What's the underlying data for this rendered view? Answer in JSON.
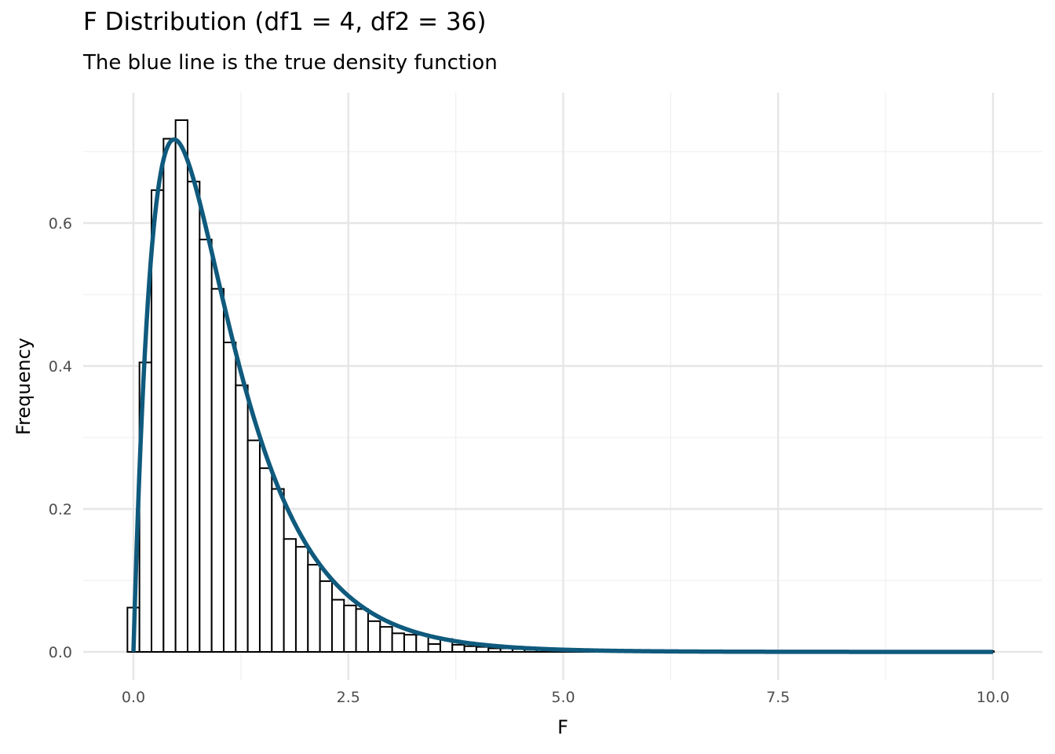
{
  "title": "F Distribution (df1 = 4, df2 = 36)",
  "subtitle": "The blue line is the true density function",
  "chart_data": {
    "type": "bar",
    "title": "F Distribution (df1 = 4, df2 = 36)",
    "subtitle": "The blue line is the true density function",
    "xlabel": "F",
    "ylabel": "Frequency",
    "xlim": [
      -0.03,
      10.03
    ],
    "ylim": [
      0,
      0.745
    ],
    "x_ticks": [
      0.0,
      2.5,
      5.0,
      7.5,
      10.0
    ],
    "x_tick_labels": [
      "0.0",
      "2.5",
      "5.0",
      "7.5",
      "10.0"
    ],
    "y_ticks": [
      0.0,
      0.2,
      0.4,
      0.6
    ],
    "y_tick_labels": [
      "0.0",
      "0.2",
      "0.4",
      "0.6"
    ],
    "grid": true,
    "histogram": {
      "binwidth": 0.14,
      "first_bin_start": -0.07,
      "densities": [
        0.062,
        0.405,
        0.646,
        0.718,
        0.744,
        0.658,
        0.577,
        0.508,
        0.433,
        0.373,
        0.296,
        0.257,
        0.228,
        0.158,
        0.147,
        0.122,
        0.099,
        0.073,
        0.065,
        0.06,
        0.043,
        0.035,
        0.026,
        0.024,
        0.024,
        0.011,
        0.018,
        0.01,
        0.008,
        0.007,
        0.005,
        0.005,
        0.004,
        0.003,
        0.003,
        0.002,
        0.002,
        0.001,
        0.001,
        0.001,
        0.001,
        0.001,
        0.001,
        0.001,
        0.001,
        0.001,
        0.001,
        0.001,
        0.001,
        0.001,
        0.001,
        0.001,
        0.001,
        0.001,
        0.001,
        0.001,
        0.001,
        0.001,
        0.001,
        0.001,
        0.001,
        0.001,
        0.001,
        0.001,
        0.001,
        0.001,
        0.001,
        0.001,
        0.001,
        0.001,
        0.001,
        0.001
      ],
      "fill": "#ffffff",
      "outline": "#000000"
    },
    "density_curve": {
      "distribution": "F",
      "df1": 4,
      "df2": 36,
      "x_range": [
        0,
        10
      ],
      "color": "#0f5a7d"
    }
  }
}
